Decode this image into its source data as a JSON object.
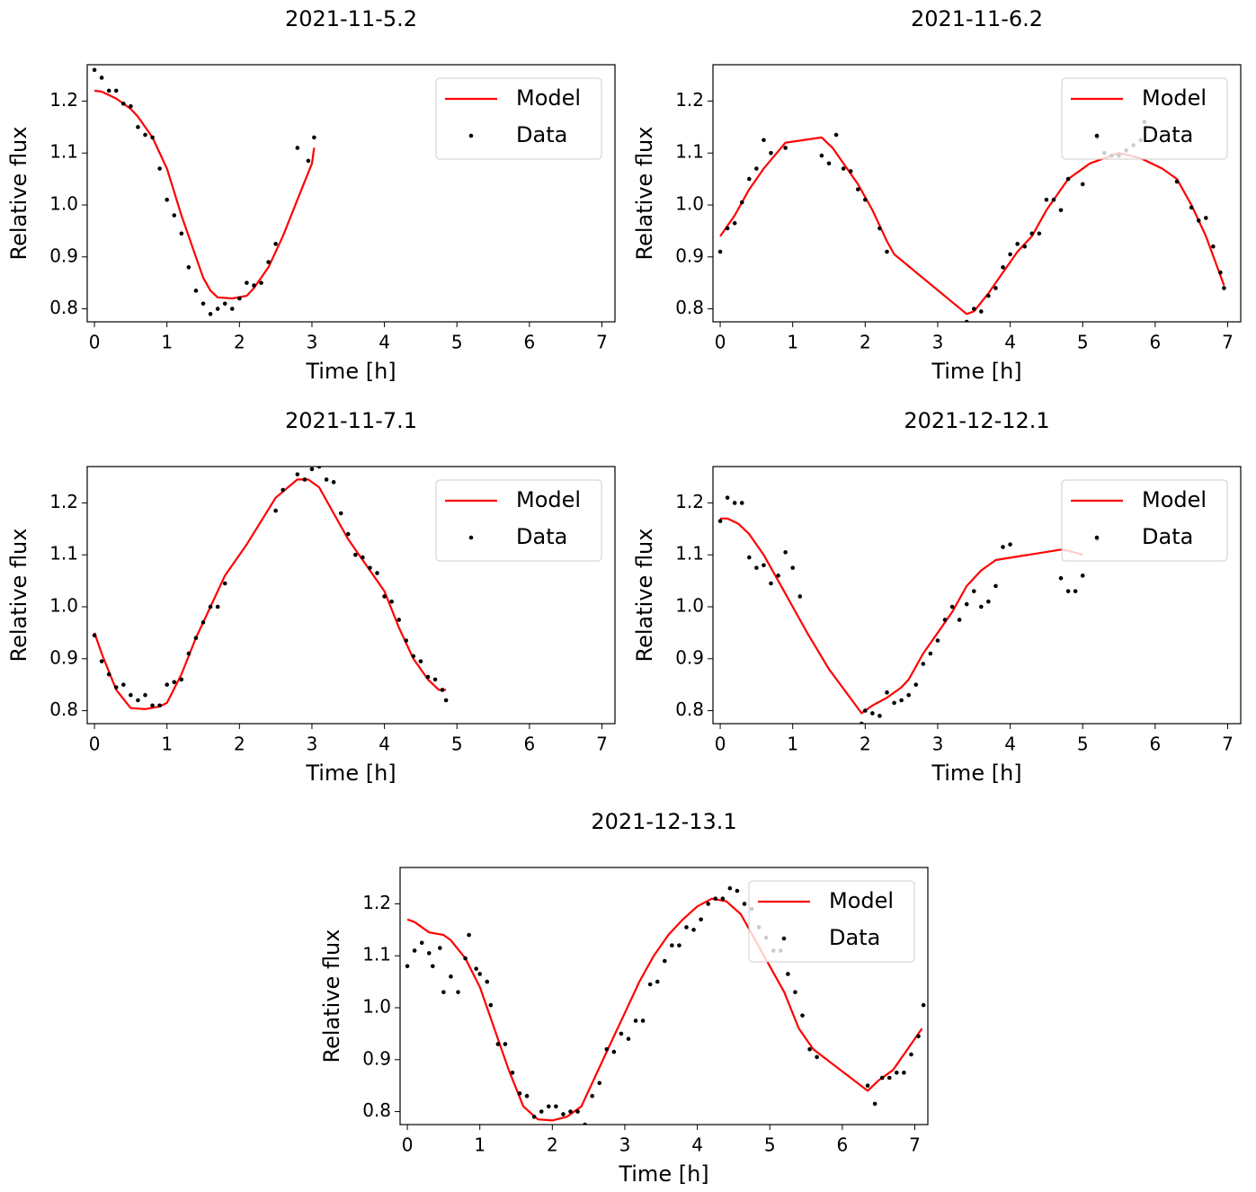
{
  "chart_data": [
    {
      "type": "line",
      "title": "2021-11-5.2",
      "xlabel": "Time [h]",
      "ylabel": "Relative flux",
      "xlim": [
        -0.1,
        7.18
      ],
      "ylim": [
        0.775,
        1.27
      ],
      "xticks": [
        0,
        1,
        2,
        3,
        4,
        5,
        6,
        7
      ],
      "yticks": [
        0.8,
        0.9,
        {
          "value": 1,
          "label": "1.0"
        },
        1.1,
        1.2
      ],
      "legend": "upper right",
      "series": [
        {
          "name": "Model",
          "kind": "line",
          "color": "#ff0000",
          "x": [
            0,
            0.1,
            0.3,
            0.5,
            0.6,
            0.8,
            1.0,
            1.2,
            1.4,
            1.5,
            1.6,
            1.7,
            1.9,
            2.1,
            2.2,
            2.4,
            2.6,
            2.8,
            3.0,
            3.03
          ],
          "values": [
            1.22,
            1.218,
            1.205,
            1.185,
            1.17,
            1.13,
            1.07,
            0.98,
            0.9,
            0.86,
            0.835,
            0.822,
            0.82,
            0.825,
            0.84,
            0.88,
            0.94,
            1.01,
            1.08,
            1.11
          ]
        },
        {
          "name": "Data",
          "kind": "scatter",
          "color": "#000000",
          "x": [
            0,
            0.1,
            0.2,
            0.3,
            0.4,
            0.5,
            0.6,
            0.7,
            0.8,
            0.9,
            1.0,
            1.1,
            1.2,
            1.3,
            1.4,
            1.5,
            1.6,
            1.7,
            1.8,
            1.9,
            2.0,
            2.1,
            2.2,
            2.3,
            2.4,
            2.5,
            2.8,
            2.95,
            3.03
          ],
          "values": [
            1.26,
            1.245,
            1.22,
            1.22,
            1.195,
            1.19,
            1.15,
            1.135,
            1.13,
            1.07,
            1.01,
            0.98,
            0.945,
            0.88,
            0.835,
            0.81,
            0.79,
            0.8,
            0.81,
            0.8,
            0.82,
            0.85,
            0.845,
            0.85,
            0.89,
            0.925,
            1.11,
            1.085,
            1.13
          ]
        }
      ]
    },
    {
      "type": "line",
      "title": "2021-11-6.2",
      "xlabel": "Time [h]",
      "ylabel": "Relative flux",
      "xlim": [
        -0.1,
        7.18
      ],
      "ylim": [
        0.775,
        1.27
      ],
      "xticks": [
        0,
        1,
        2,
        3,
        4,
        5,
        6,
        7
      ],
      "yticks": [
        0.8,
        0.9,
        {
          "value": 1,
          "label": "1.0"
        },
        1.1,
        1.2
      ],
      "legend": "upper right",
      "series": [
        {
          "name": "Model",
          "kind": "line",
          "color": "#ff0000",
          "x": [
            0,
            0.2,
            0.4,
            0.6,
            0.9,
            1.4,
            1.55,
            1.7,
            1.9,
            2.1,
            2.3,
            2.4,
            3.4,
            3.5,
            3.7,
            3.9,
            4.1,
            4.3,
            4.5,
            4.8,
            5.1,
            5.5,
            5.8,
            6.1,
            6.3,
            6.5,
            6.7,
            6.95
          ],
          "values": [
            0.94,
            0.98,
            1.03,
            1.07,
            1.12,
            1.13,
            1.11,
            1.08,
            1.04,
            0.99,
            0.93,
            0.905,
            0.79,
            0.795,
            0.83,
            0.87,
            0.91,
            0.94,
            0.99,
            1.05,
            1.08,
            1.1,
            1.09,
            1.07,
            1.05,
            1.0,
            0.94,
            0.845
          ]
        },
        {
          "name": "Data",
          "kind": "scatter",
          "color": "#000000",
          "x": [
            0,
            0.1,
            0.2,
            0.3,
            0.4,
            0.5,
            0.6,
            0.7,
            0.9,
            1.4,
            1.5,
            1.6,
            1.7,
            1.8,
            1.9,
            2.0,
            2.2,
            2.3,
            3.4,
            3.5,
            3.6,
            3.7,
            3.8,
            3.9,
            4.0,
            4.1,
            4.2,
            4.3,
            4.4,
            4.5,
            4.6,
            4.7,
            4.8,
            5.0,
            5.2,
            5.3,
            5.4,
            5.5,
            5.6,
            5.7,
            5.8,
            5.85,
            6.3,
            6.5,
            6.6,
            6.7,
            6.8,
            6.9,
            6.95
          ],
          "values": [
            0.91,
            0.955,
            0.965,
            1.005,
            1.05,
            1.07,
            1.125,
            1.1,
            1.11,
            1.095,
            1.08,
            1.135,
            1.07,
            1.065,
            1.03,
            1.01,
            0.955,
            0.91,
            0.775,
            0.8,
            0.795,
            0.825,
            0.84,
            0.88,
            0.905,
            0.925,
            0.92,
            0.945,
            0.945,
            1.01,
            1.01,
            0.99,
            1.05,
            1.04,
            1.13,
            1.1,
            1.095,
            1.095,
            1.105,
            1.115,
            1.125,
            1.16,
            1.045,
            0.995,
            0.97,
            0.975,
            0.92,
            0.87,
            0.84
          ]
        }
      ]
    },
    {
      "type": "line",
      "title": "2021-11-7.1",
      "xlabel": "Time [h]",
      "ylabel": "Relative flux",
      "xlim": [
        -0.1,
        7.18
      ],
      "ylim": [
        0.775,
        1.27
      ],
      "xticks": [
        0,
        1,
        2,
        3,
        4,
        5,
        6,
        7
      ],
      "yticks": [
        0.8,
        0.9,
        {
          "value": 1,
          "label": "1.0"
        },
        1.1,
        1.2
      ],
      "legend": "upper right",
      "series": [
        {
          "name": "Model",
          "kind": "line",
          "color": "#ff0000",
          "x": [
            0,
            0.1,
            0.3,
            0.5,
            0.7,
            0.9,
            1.0,
            1.2,
            1.4,
            1.6,
            1.8,
            2.1,
            2.5,
            2.8,
            2.95,
            3.1,
            3.3,
            3.5,
            3.8,
            4.0,
            4.2,
            4.4,
            4.6,
            4.75,
            4.85
          ],
          "values": [
            0.95,
            0.91,
            0.84,
            0.805,
            0.803,
            0.808,
            0.815,
            0.87,
            0.94,
            1.0,
            1.06,
            1.12,
            1.21,
            1.245,
            1.245,
            1.23,
            1.18,
            1.13,
            1.07,
            1.03,
            0.96,
            0.9,
            0.86,
            0.84,
            0.84
          ]
        },
        {
          "name": "Data",
          "kind": "scatter",
          "color": "#000000",
          "x": [
            0,
            0.1,
            0.2,
            0.3,
            0.4,
            0.5,
            0.6,
            0.7,
            0.8,
            0.9,
            1.0,
            1.1,
            1.2,
            1.3,
            1.4,
            1.5,
            1.6,
            1.7,
            1.8,
            2.5,
            2.6,
            2.8,
            2.9,
            3.0,
            3.1,
            3.2,
            3.3,
            3.4,
            3.5,
            3.6,
            3.7,
            3.8,
            3.9,
            4.0,
            4.1,
            4.2,
            4.3,
            4.4,
            4.5,
            4.6,
            4.7,
            4.8,
            4.85
          ],
          "values": [
            0.945,
            0.895,
            0.87,
            0.845,
            0.85,
            0.83,
            0.82,
            0.83,
            0.81,
            0.81,
            0.85,
            0.855,
            0.86,
            0.91,
            0.94,
            0.97,
            1.0,
            1.0,
            1.045,
            1.185,
            1.225,
            1.255,
            1.245,
            1.265,
            1.27,
            1.245,
            1.24,
            1.18,
            1.14,
            1.1,
            1.095,
            1.075,
            1.065,
            1.02,
            1.01,
            0.975,
            0.935,
            0.905,
            0.895,
            0.865,
            0.86,
            0.84,
            0.82
          ]
        }
      ]
    },
    {
      "type": "line",
      "title": "2021-12-12.1",
      "xlabel": "Time [h]",
      "ylabel": "Relative flux",
      "xlim": [
        -0.1,
        7.18
      ],
      "ylim": [
        0.775,
        1.27
      ],
      "xticks": [
        0,
        1,
        2,
        3,
        4,
        5,
        6,
        7
      ],
      "yticks": [
        0.8,
        0.9,
        {
          "value": 1,
          "label": "1.0"
        },
        1.1,
        1.2
      ],
      "legend": "upper right",
      "series": [
        {
          "name": "Model",
          "kind": "line",
          "color": "#ff0000",
          "x": [
            0,
            0.1,
            0.25,
            0.4,
            0.6,
            0.8,
            1.0,
            1.2,
            1.5,
            1.95,
            2.1,
            2.3,
            2.5,
            2.6,
            2.8,
            3.0,
            3.2,
            3.4,
            3.6,
            3.8,
            4.7,
            4.8,
            5.0
          ],
          "values": [
            1.17,
            1.17,
            1.16,
            1.14,
            1.1,
            1.05,
            1.0,
            0.95,
            0.88,
            0.795,
            0.81,
            0.825,
            0.845,
            0.86,
            0.91,
            0.95,
            0.99,
            1.04,
            1.07,
            1.09,
            1.11,
            1.108,
            1.1
          ]
        },
        {
          "name": "Data",
          "kind": "scatter",
          "color": "#000000",
          "x": [
            0,
            0.1,
            0.2,
            0.3,
            0.4,
            0.5,
            0.6,
            0.7,
            0.8,
            0.9,
            1.0,
            1.1,
            1.95,
            2.0,
            2.1,
            2.2,
            2.3,
            2.4,
            2.5,
            2.6,
            2.7,
            2.8,
            2.9,
            3.0,
            3.1,
            3.2,
            3.3,
            3.4,
            3.5,
            3.6,
            3.7,
            3.8,
            3.9,
            4.0,
            4.7,
            4.8,
            4.9,
            5.0,
            5.2
          ],
          "values": [
            1.165,
            1.21,
            1.2,
            1.2,
            1.095,
            1.075,
            1.08,
            1.045,
            1.06,
            1.105,
            1.075,
            1.02,
            0.775,
            0.8,
            0.795,
            0.79,
            0.835,
            0.815,
            0.82,
            0.83,
            0.85,
            0.89,
            0.91,
            0.935,
            0.975,
            1.0,
            0.975,
            1.005,
            1.03,
            1.0,
            1.01,
            1.04,
            1.115,
            1.12,
            1.055,
            1.03,
            1.03,
            1.06,
            1.13
          ]
        }
      ]
    },
    {
      "type": "line",
      "title": "2021-12-13.1",
      "xlabel": "Time [h]",
      "ylabel": "Relative flux",
      "xlim": [
        -0.1,
        7.18
      ],
      "ylim": [
        0.775,
        1.27
      ],
      "xticks": [
        0,
        1,
        2,
        3,
        4,
        5,
        6,
        7
      ],
      "yticks": [
        0.8,
        0.9,
        {
          "value": 1,
          "label": "1.0"
        },
        1.1,
        1.2
      ],
      "legend": "upper right",
      "series": [
        {
          "name": "Model",
          "kind": "line",
          "color": "#ff0000",
          "x": [
            0,
            0.1,
            0.3,
            0.5,
            0.6,
            0.8,
            1.0,
            1.2,
            1.4,
            1.6,
            1.8,
            2.0,
            2.2,
            2.4,
            2.6,
            2.8,
            3.0,
            3.2,
            3.4,
            3.6,
            3.8,
            4.0,
            4.2,
            4.4,
            4.6,
            4.8,
            5.0,
            5.2,
            5.4,
            5.6,
            6.35,
            6.5,
            6.7,
            6.9,
            7.1
          ],
          "values": [
            1.17,
            1.165,
            1.145,
            1.14,
            1.13,
            1.095,
            1.04,
            0.96,
            0.88,
            0.81,
            0.785,
            0.783,
            0.79,
            0.81,
            0.87,
            0.93,
            0.99,
            1.05,
            1.1,
            1.14,
            1.17,
            1.195,
            1.21,
            1.205,
            1.18,
            1.13,
            1.08,
            1.03,
            0.96,
            0.92,
            0.84,
            0.86,
            0.88,
            0.92,
            0.96
          ]
        },
        {
          "name": "Data",
          "kind": "scatter",
          "color": "#000000",
          "x": [
            0,
            0.1,
            0.2,
            0.3,
            0.35,
            0.45,
            0.5,
            0.6,
            0.7,
            0.8,
            0.85,
            0.95,
            1.0,
            1.1,
            1.15,
            1.25,
            1.35,
            1.45,
            1.55,
            1.65,
            1.75,
            1.85,
            1.95,
            2.05,
            2.15,
            2.25,
            2.35,
            2.45,
            2.55,
            2.65,
            2.75,
            2.85,
            2.95,
            3.05,
            3.15,
            3.25,
            3.35,
            3.45,
            3.55,
            3.65,
            3.75,
            3.85,
            3.95,
            4.05,
            4.15,
            4.25,
            4.35,
            4.45,
            4.55,
            4.65,
            4.75,
            4.85,
            4.95,
            5.05,
            5.15,
            5.25,
            5.35,
            5.45,
            5.55,
            5.65,
            6.35,
            6.45,
            6.55,
            6.65,
            6.75,
            6.85,
            6.95,
            7.05,
            7.12
          ],
          "values": [
            1.08,
            1.11,
            1.125,
            1.105,
            1.08,
            1.115,
            1.03,
            1.06,
            1.03,
            1.095,
            1.14,
            1.075,
            1.065,
            1.05,
            1.005,
            0.93,
            0.93,
            0.875,
            0.835,
            0.83,
            0.79,
            0.8,
            0.81,
            0.81,
            0.795,
            0.8,
            0.8,
            0.775,
            0.83,
            0.855,
            0.92,
            0.915,
            0.95,
            0.94,
            0.975,
            0.975,
            1.045,
            1.05,
            1.09,
            1.12,
            1.12,
            1.155,
            1.15,
            1.17,
            1.2,
            1.21,
            1.21,
            1.23,
            1.225,
            1.2,
            1.19,
            1.155,
            1.135,
            1.11,
            1.11,
            1.065,
            1.03,
            0.985,
            0.92,
            0.905,
            0.85,
            0.815,
            0.865,
            0.865,
            0.875,
            0.875,
            0.91,
            0.945,
            1.005
          ]
        }
      ]
    }
  ]
}
